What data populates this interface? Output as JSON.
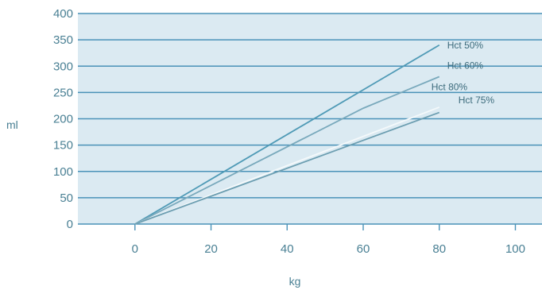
{
  "chart_data": {
    "type": "line",
    "title": "",
    "xlabel": "kg",
    "ylabel": "ml",
    "xlim": [
      -15,
      107
    ],
    "ylim": [
      0,
      400
    ],
    "x_ticks": [
      0,
      20,
      40,
      60,
      80,
      100
    ],
    "y_ticks": [
      0,
      50,
      100,
      150,
      200,
      250,
      300,
      350,
      400
    ],
    "grid": "horizontal",
    "legend": "none (series labelled inline)",
    "colors": {
      "plot_background": "#dbeaf2",
      "grid": "#4a92b8",
      "tick_text": "#4a8094"
    },
    "series": [
      {
        "name": "Hct 50%",
        "color": "#4f9ab6",
        "x": [
          0,
          80
        ],
        "y": [
          0,
          340
        ]
      },
      {
        "name": "Hct 60%",
        "color": "#79a9bc",
        "x": [
          0,
          60,
          80
        ],
        "y": [
          0,
          220,
          280
        ]
      },
      {
        "name": "Hct 75%",
        "color": "#f4f9fb",
        "x": [
          0,
          80
        ],
        "y": [
          0,
          222
        ]
      },
      {
        "name": "Hct 80%",
        "color": "#6c9eb1",
        "x": [
          0,
          80
        ],
        "y": [
          0,
          212
        ]
      }
    ]
  }
}
